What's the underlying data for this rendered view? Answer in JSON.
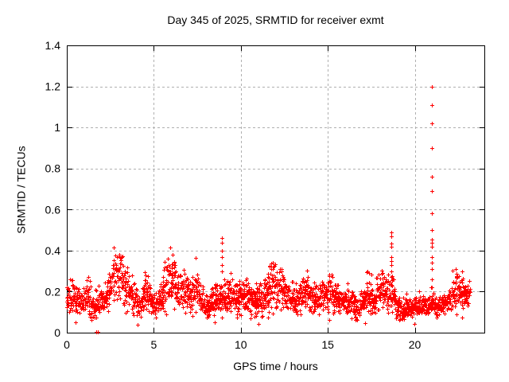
{
  "chart_data": {
    "type": "scatter",
    "title": "Day 345 of 2025, SRMTID for receiver exmt",
    "xlabel": "GPS time / hours",
    "ylabel": "SRMTID / TECUs",
    "xlim": [
      0,
      24
    ],
    "ylim": [
      0,
      1.4
    ],
    "xticks": {
      "values": [
        0,
        5,
        10,
        15,
        20
      ],
      "labels": [
        "0",
        "5",
        "10",
        "15",
        "20"
      ]
    },
    "yticks": {
      "values": [
        0,
        0.2,
        0.4,
        0.6,
        0.8,
        1.0,
        1.2,
        1.4
      ],
      "labels": [
        "0",
        "0.2",
        "0.4",
        "0.6",
        "0.8",
        "1",
        "1.2",
        "1.4"
      ]
    },
    "grid": {
      "show": true,
      "color": "#b0b0b0",
      "dash": [
        3,
        3
      ]
    },
    "border_color": "#000000",
    "text_color": "#000000",
    "background_color": "#ffffff",
    "series": [
      {
        "name": "SRMTID",
        "marker": "plus",
        "color": "#ff0000",
        "marker_size": 5
      }
    ],
    "band_profile": [
      [
        0.0,
        0.08,
        0.26
      ],
      [
        0.3,
        0.1,
        0.28
      ],
      [
        0.6,
        0.08,
        0.24
      ],
      [
        0.9,
        0.08,
        0.22
      ],
      [
        1.2,
        0.08,
        0.3
      ],
      [
        1.5,
        0.05,
        0.19
      ],
      [
        1.8,
        0.08,
        0.2
      ],
      [
        2.1,
        0.09,
        0.24
      ],
      [
        2.4,
        0.1,
        0.3
      ],
      [
        2.7,
        0.12,
        0.44
      ],
      [
        3.0,
        0.12,
        0.42
      ],
      [
        3.3,
        0.1,
        0.36
      ],
      [
        3.6,
        0.1,
        0.33
      ],
      [
        3.9,
        0.08,
        0.24
      ],
      [
        4.2,
        0.07,
        0.18
      ],
      [
        4.5,
        0.1,
        0.32
      ],
      [
        4.8,
        0.08,
        0.24
      ],
      [
        5.1,
        0.08,
        0.18
      ],
      [
        5.4,
        0.09,
        0.24
      ],
      [
        5.7,
        0.1,
        0.36
      ],
      [
        5.95,
        0.12,
        0.45
      ],
      [
        6.2,
        0.1,
        0.36
      ],
      [
        6.45,
        0.1,
        0.28
      ],
      [
        6.65,
        0.12,
        0.37
      ],
      [
        6.9,
        0.1,
        0.31
      ],
      [
        7.2,
        0.08,
        0.28
      ],
      [
        7.45,
        0.1,
        0.33
      ],
      [
        7.7,
        0.08,
        0.26
      ],
      [
        8.0,
        0.05,
        0.2
      ],
      [
        8.3,
        0.07,
        0.22
      ],
      [
        8.6,
        0.08,
        0.26
      ],
      [
        8.9,
        0.1,
        0.28
      ],
      [
        9.2,
        0.08,
        0.26
      ],
      [
        9.45,
        0.1,
        0.31
      ],
      [
        9.8,
        0.08,
        0.26
      ],
      [
        10.2,
        0.09,
        0.28
      ],
      [
        10.6,
        0.08,
        0.24
      ],
      [
        11.0,
        0.06,
        0.24
      ],
      [
        11.4,
        0.08,
        0.28
      ],
      [
        11.7,
        0.11,
        0.37
      ],
      [
        12.0,
        0.1,
        0.36
      ],
      [
        12.3,
        0.1,
        0.32
      ],
      [
        12.6,
        0.1,
        0.29
      ],
      [
        12.9,
        0.08,
        0.26
      ],
      [
        13.2,
        0.08,
        0.23
      ],
      [
        13.5,
        0.09,
        0.26
      ],
      [
        13.8,
        0.1,
        0.3
      ],
      [
        14.1,
        0.08,
        0.26
      ],
      [
        14.5,
        0.08,
        0.24
      ],
      [
        14.8,
        0.1,
        0.28
      ],
      [
        15.2,
        0.1,
        0.3
      ],
      [
        15.5,
        0.08,
        0.26
      ],
      [
        15.9,
        0.08,
        0.22
      ],
      [
        16.3,
        0.08,
        0.22
      ],
      [
        16.7,
        0.05,
        0.18
      ],
      [
        17.0,
        0.07,
        0.22
      ],
      [
        17.3,
        0.08,
        0.27
      ],
      [
        17.6,
        0.08,
        0.24
      ],
      [
        17.9,
        0.09,
        0.3
      ],
      [
        18.1,
        0.1,
        0.37
      ],
      [
        18.4,
        0.08,
        0.26
      ],
      [
        18.7,
        0.1,
        0.3
      ],
      [
        19.0,
        0.06,
        0.18
      ],
      [
        19.3,
        0.04,
        0.16
      ],
      [
        19.6,
        0.06,
        0.17
      ],
      [
        20.0,
        0.07,
        0.18
      ],
      [
        20.4,
        0.08,
        0.18
      ],
      [
        20.8,
        0.07,
        0.17
      ],
      [
        21.05,
        0.08,
        0.22
      ],
      [
        21.3,
        0.07,
        0.18
      ],
      [
        21.6,
        0.08,
        0.19
      ],
      [
        21.9,
        0.08,
        0.21
      ],
      [
        22.2,
        0.1,
        0.27
      ],
      [
        22.5,
        0.12,
        0.31
      ],
      [
        22.8,
        0.1,
        0.28
      ],
      [
        23.0,
        0.1,
        0.25
      ],
      [
        23.2,
        0.12,
        0.28
      ]
    ],
    "spikes": [
      {
        "t": 1.7,
        "values": [
          0.005
        ]
      },
      {
        "t": 1.79,
        "values": [
          0.005
        ]
      },
      {
        "t": 8.92,
        "values": [
          0.46,
          0.44,
          0.4,
          0.37,
          0.33,
          0.3
        ]
      },
      {
        "t": 18.65,
        "values": [
          0.49,
          0.47,
          0.435,
          0.42,
          0.37,
          0.35,
          0.33,
          0.3
        ]
      },
      {
        "t": 20.98,
        "values": [
          1.2,
          1.11,
          1.02,
          0.9,
          0.76,
          0.69,
          0.58,
          0.5,
          0.455,
          0.44,
          0.42,
          0.37,
          0.34,
          0.31,
          0.26,
          0.22,
          0.18,
          0.15
        ]
      },
      {
        "t": 22.72,
        "values": [
          0.3
        ]
      }
    ],
    "sampling": {
      "seed": 1345,
      "start_hour": 0,
      "end_hour": 23.2,
      "step_hours": 0.0166667,
      "second_point_prob": 0.55,
      "third_point_prob": 0.15,
      "above_band_prob": 0.015,
      "below_band_prob": 0.012
    }
  }
}
